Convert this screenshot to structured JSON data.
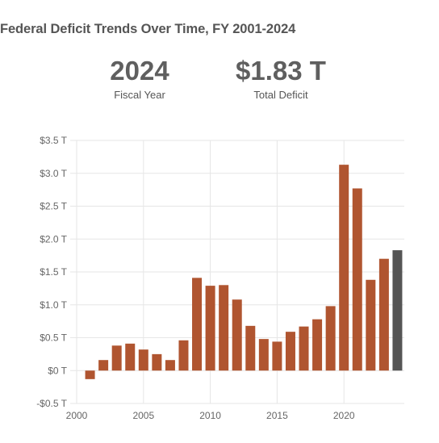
{
  "header": {
    "title": "Federal Deficit Trends Over Time, FY 2001-2024"
  },
  "stats": {
    "year_value": "2024",
    "year_label": "Fiscal Year",
    "deficit_value": "$1.83 T",
    "deficit_label": "Total Deficit"
  },
  "colors": {
    "bar": "#b05530",
    "highlight": "#555555",
    "grid": "#e6e6e6"
  },
  "chart_data": {
    "type": "bar",
    "title": "Federal Deficit Trends Over Time, FY 2001-2024",
    "xlim": [
      2000,
      2025
    ],
    "ylim": [
      -0.5,
      3.5
    ],
    "x_ticks": [
      2000,
      2005,
      2010,
      2015,
      2020
    ],
    "y_ticks": [
      -0.5,
      0,
      0.5,
      1.0,
      1.5,
      2.0,
      2.5,
      3.0,
      3.5
    ],
    "y_tick_labels": [
      "-$0.5 T",
      "$0 T",
      "$0.5 T",
      "$1.0 T",
      "$1.5 T",
      "$2.0 T",
      "$2.5 T",
      "$3.0 T",
      "$3.5 T"
    ],
    "grid": true,
    "highlight_year": 2024,
    "x": [
      2001,
      2002,
      2003,
      2004,
      2005,
      2006,
      2007,
      2008,
      2009,
      2010,
      2011,
      2012,
      2013,
      2014,
      2015,
      2016,
      2017,
      2018,
      2019,
      2020,
      2021,
      2022,
      2023,
      2024
    ],
    "values": [
      -0.13,
      0.16,
      0.38,
      0.41,
      0.32,
      0.25,
      0.16,
      0.46,
      1.41,
      1.29,
      1.3,
      1.08,
      0.68,
      0.48,
      0.44,
      0.59,
      0.67,
      0.78,
      0.98,
      3.13,
      2.77,
      1.38,
      1.7,
      1.83
    ]
  }
}
